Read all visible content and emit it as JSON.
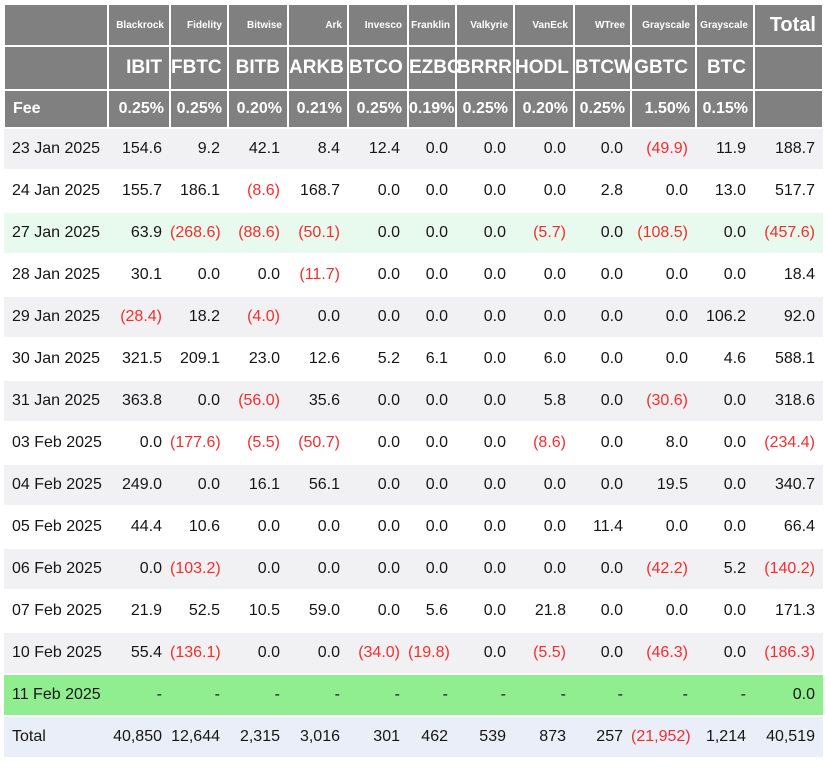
{
  "chart_data": {
    "type": "table",
    "fee_label": "Fee",
    "total_label": "Total",
    "columns": [
      {
        "issuer": "Blackrock",
        "ticker": "IBIT",
        "fee": "0.25%"
      },
      {
        "issuer": "Fidelity",
        "ticker": "FBTC",
        "fee": "0.25%"
      },
      {
        "issuer": "Bitwise",
        "ticker": "BITB",
        "fee": "0.20%"
      },
      {
        "issuer": "Ark",
        "ticker": "ARKB",
        "fee": "0.21%"
      },
      {
        "issuer": "Invesco",
        "ticker": "BTCO",
        "fee": "0.25%"
      },
      {
        "issuer": "Franklin",
        "ticker": "EZBC",
        "fee": "0.19%"
      },
      {
        "issuer": "Valkyrie",
        "ticker": "BRRR",
        "fee": "0.25%"
      },
      {
        "issuer": "VanEck",
        "ticker": "HODL",
        "fee": "0.20%"
      },
      {
        "issuer": "WTree",
        "ticker": "BTCW",
        "fee": "0.25%"
      },
      {
        "issuer": "Grayscale",
        "ticker": "GBTC",
        "fee": "1.50%"
      },
      {
        "issuer": "Grayscale",
        "ticker": "BTC",
        "fee": "0.15%"
      }
    ],
    "rows": [
      {
        "date": "23 Jan 2025",
        "highlight": "stripe",
        "values": [
          "154.6",
          "9.2",
          "42.1",
          "8.4",
          "12.4",
          "0.0",
          "0.0",
          "0.0",
          "0.0",
          "(49.9)",
          "11.9",
          "188.7"
        ]
      },
      {
        "date": "24 Jan 2025",
        "highlight": "white",
        "values": [
          "155.7",
          "186.1",
          "(8.6)",
          "168.7",
          "0.0",
          "0.0",
          "0.0",
          "0.0",
          "2.8",
          "0.0",
          "13.0",
          "517.7"
        ]
      },
      {
        "date": "27 Jan 2025",
        "highlight": "mint",
        "values": [
          "63.9",
          "(268.6)",
          "(88.6)",
          "(50.1)",
          "0.0",
          "0.0",
          "0.0",
          "(5.7)",
          "0.0",
          "(108.5)",
          "0.0",
          "(457.6)"
        ]
      },
      {
        "date": "28 Jan 2025",
        "highlight": "white",
        "values": [
          "30.1",
          "0.0",
          "0.0",
          "(11.7)",
          "0.0",
          "0.0",
          "0.0",
          "0.0",
          "0.0",
          "0.0",
          "0.0",
          "18.4"
        ]
      },
      {
        "date": "29 Jan 2025",
        "highlight": "stripe",
        "values": [
          "(28.4)",
          "18.2",
          "(4.0)",
          "0.0",
          "0.0",
          "0.0",
          "0.0",
          "0.0",
          "0.0",
          "0.0",
          "106.2",
          "92.0"
        ]
      },
      {
        "date": "30 Jan 2025",
        "highlight": "white",
        "values": [
          "321.5",
          "209.1",
          "23.0",
          "12.6",
          "5.2",
          "6.1",
          "0.0",
          "6.0",
          "0.0",
          "0.0",
          "4.6",
          "588.1"
        ]
      },
      {
        "date": "31 Jan 2025",
        "highlight": "stripe",
        "values": [
          "363.8",
          "0.0",
          "(56.0)",
          "35.6",
          "0.0",
          "0.0",
          "0.0",
          "5.8",
          "0.0",
          "(30.6)",
          "0.0",
          "318.6"
        ]
      },
      {
        "date": "03 Feb 2025",
        "highlight": "white",
        "values": [
          "0.0",
          "(177.6)",
          "(5.5)",
          "(50.7)",
          "0.0",
          "0.0",
          "0.0",
          "(8.6)",
          "0.0",
          "8.0",
          "0.0",
          "(234.4)"
        ]
      },
      {
        "date": "04 Feb 2025",
        "highlight": "stripe",
        "values": [
          "249.0",
          "0.0",
          "16.1",
          "56.1",
          "0.0",
          "0.0",
          "0.0",
          "0.0",
          "0.0",
          "19.5",
          "0.0",
          "340.7"
        ]
      },
      {
        "date": "05 Feb 2025",
        "highlight": "white",
        "values": [
          "44.4",
          "10.6",
          "0.0",
          "0.0",
          "0.0",
          "0.0",
          "0.0",
          "0.0",
          "11.4",
          "0.0",
          "0.0",
          "66.4"
        ]
      },
      {
        "date": "06 Feb 2025",
        "highlight": "stripe",
        "values": [
          "0.0",
          "(103.2)",
          "0.0",
          "0.0",
          "0.0",
          "0.0",
          "0.0",
          "0.0",
          "0.0",
          "(42.2)",
          "5.2",
          "(140.2)"
        ]
      },
      {
        "date": "07 Feb 2025",
        "highlight": "white",
        "values": [
          "21.9",
          "52.5",
          "10.5",
          "59.0",
          "0.0",
          "5.6",
          "0.0",
          "21.8",
          "0.0",
          "0.0",
          "0.0",
          "171.3"
        ]
      },
      {
        "date": "10 Feb 2025",
        "highlight": "stripe",
        "values": [
          "55.4",
          "(136.1)",
          "0.0",
          "0.0",
          "(34.0)",
          "(19.8)",
          "0.0",
          "(5.5)",
          "0.0",
          "(46.3)",
          "0.0",
          "(186.3)"
        ]
      },
      {
        "date": "11 Feb 2025",
        "highlight": "green",
        "values": [
          "-",
          "-",
          "-",
          "-",
          "-",
          "-",
          "-",
          "-",
          "-",
          "-",
          "-",
          "0.0"
        ]
      }
    ],
    "total_row": {
      "label": "Total",
      "values": [
        "40,850",
        "12,644",
        "2,315",
        "3,016",
        "301",
        "462",
        "539",
        "873",
        "257",
        "(21,952)",
        "1,214",
        "40,519"
      ]
    },
    "colors": {
      "header_bg": "#808080",
      "stripe": "#f1f1f3",
      "mint": "#e8f9ee",
      "green": "#90ee90",
      "total_bg": "#e9eef8",
      "negative_red": "#f52d2d"
    }
  }
}
